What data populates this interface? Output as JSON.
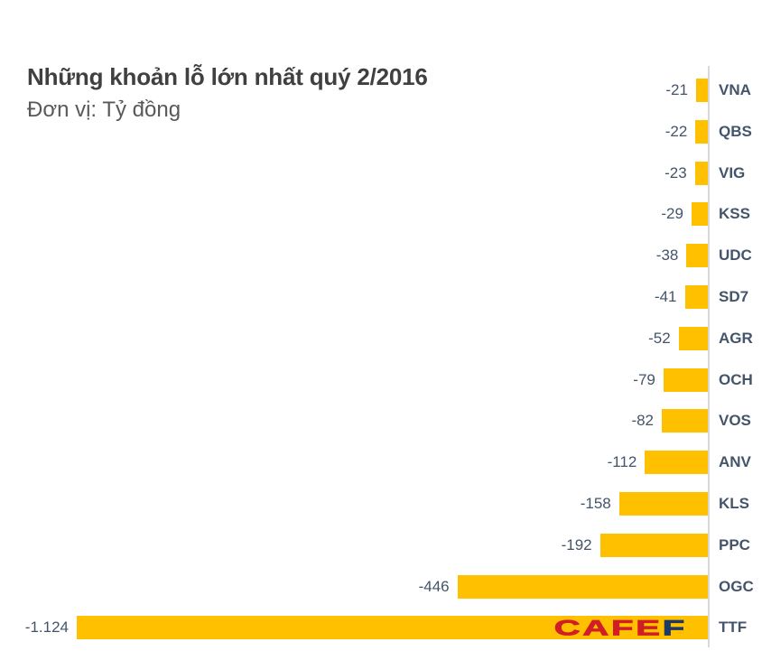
{
  "chart_data": {
    "type": "bar",
    "orientation": "horizontal",
    "title": "Những khoản lỗ lớn nhất quý 2/2016",
    "subtitle": "Đơn vị: Tỷ đồng",
    "unit": "Tỷ đồng",
    "categories": [
      "VNA",
      "QBS",
      "VIG",
      "KSS",
      "UDC",
      "SD7",
      "AGR",
      "OCH",
      "VOS",
      "ANV",
      "KLS",
      "PPC",
      "OGC",
      "TTF"
    ],
    "values": [
      -21,
      -22,
      -23,
      -29,
      -38,
      -41,
      -52,
      -79,
      -82,
      -112,
      -158,
      -192,
      -446,
      -1124
    ],
    "value_labels": [
      "-21",
      "-22",
      "-23",
      "-29",
      "-38",
      "-41",
      "-52",
      "-79",
      "-82",
      "-112",
      "-158",
      "-192",
      "-446",
      "-1.124"
    ],
    "xlim": [
      -1124,
      0
    ],
    "grid": false,
    "legend": "none",
    "axis_side": "right",
    "colors": {
      "bar": "#FFC000",
      "axis_line": "#D9D9D9",
      "category_label": "#44546A",
      "value_label": "#44546A",
      "title": "#404040",
      "subtitle": "#595959"
    }
  },
  "watermark": {
    "brand_red_part": "CAFE",
    "brand_blue_part": "F",
    "red_hex": "#D11E26",
    "blue_hex": "#1F3864"
  }
}
